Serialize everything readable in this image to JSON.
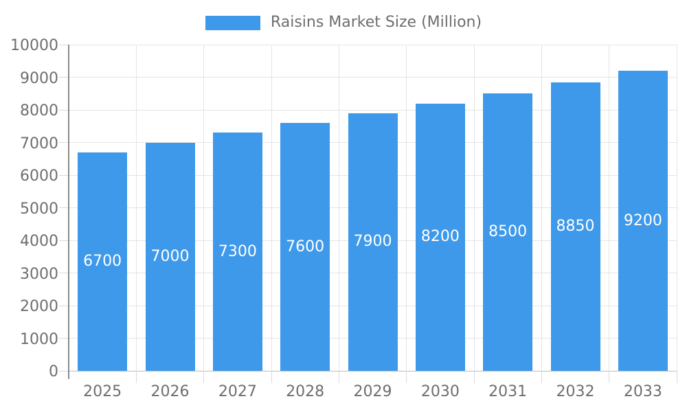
{
  "chart_data": {
    "type": "bar",
    "title": "",
    "categories": [
      "2025",
      "2026",
      "2027",
      "2028",
      "2029",
      "2030",
      "2031",
      "2032",
      "2033"
    ],
    "series": [
      {
        "name": "Raisins Market Size (Million)",
        "values": [
          6700,
          7000,
          7300,
          7600,
          7900,
          8200,
          8500,
          8850,
          9200
        ]
      }
    ],
    "xlabel": "",
    "ylabel": "",
    "ylim": [
      0,
      10000
    ],
    "yticks": [
      0,
      1000,
      2000,
      3000,
      4000,
      5000,
      6000,
      7000,
      8000,
      9000,
      10000
    ],
    "grid": true,
    "legend_position": "top-center",
    "value_labels": "inside-center",
    "colors": {
      "bar": "#3E99EA",
      "bar_label_text": "#FFFFFF",
      "axis_text": "#6E6E6E",
      "legend_text": "#6E6E6E",
      "grid_line": "#E4E4E4",
      "tick_line": "#D9D9D9",
      "x_axis_line": "#BDBDBD",
      "y_axis_line": "#8A8A8A",
      "background": "#FFFFFF"
    }
  }
}
